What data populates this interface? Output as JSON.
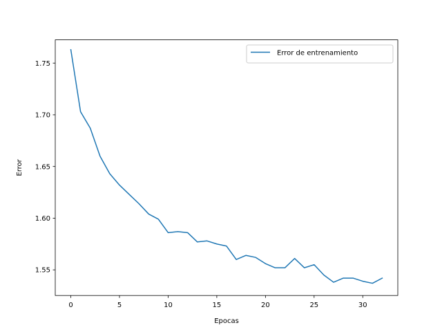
{
  "chart_data": {
    "type": "line",
    "title": "",
    "xlabel": "Epocas",
    "ylabel": "Error",
    "xlim": [
      -1.6,
      33.6
    ],
    "ylim": [
      1.5252,
      1.7725
    ],
    "xticks": [
      0,
      5,
      10,
      15,
      20,
      25,
      30
    ],
    "xtick_labels": [
      "0",
      "5",
      "10",
      "15",
      "20",
      "25",
      "30"
    ],
    "yticks": [
      1.55,
      1.6,
      1.65,
      1.7,
      1.75
    ],
    "ytick_labels": [
      "1.55",
      "1.60",
      "1.65",
      "1.70",
      "1.75"
    ],
    "grid": false,
    "legend_position": "upper right",
    "series": [
      {
        "name": "Error de entrenamiento",
        "color": "#1f77b4",
        "x": [
          0,
          1,
          2,
          3,
          4,
          5,
          6,
          7,
          8,
          9,
          10,
          11,
          12,
          13,
          14,
          15,
          16,
          17,
          18,
          19,
          20,
          21,
          22,
          23,
          24,
          25,
          26,
          27,
          28,
          29,
          30,
          31,
          32
        ],
        "values": [
          1.763,
          1.703,
          1.687,
          1.66,
          1.643,
          1.632,
          1.623,
          1.614,
          1.604,
          1.599,
          1.586,
          1.587,
          1.586,
          1.577,
          1.578,
          1.575,
          1.573,
          1.56,
          1.564,
          1.562,
          1.556,
          1.552,
          1.552,
          1.561,
          1.552,
          1.555,
          1.545,
          1.538,
          1.542,
          1.542,
          1.539,
          1.537,
          1.542
        ]
      }
    ]
  }
}
